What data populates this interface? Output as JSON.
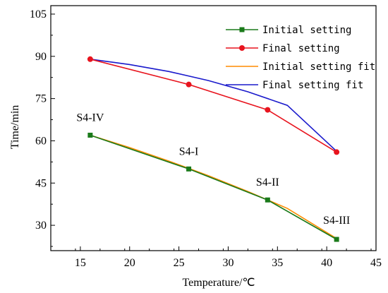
{
  "chart_data": {
    "type": "line",
    "title": "",
    "xlabel": "Temperature/℃",
    "ylabel": "Time/min",
    "xlim": [
      12,
      45
    ],
    "ylim": [
      21,
      108
    ],
    "xticks": [
      15,
      20,
      25,
      30,
      35,
      40,
      45
    ],
    "yticks": [
      30,
      45,
      60,
      75,
      90,
      105
    ],
    "grid": false,
    "legend_position": "top-right",
    "series": [
      {
        "name": "Initial setting",
        "color": "#1a7a1a",
        "marker": "square",
        "x": [
          16,
          26,
          34,
          41
        ],
        "y": [
          62,
          50,
          39,
          25
        ]
      },
      {
        "name": "Final setting",
        "color": "#e8141e",
        "marker": "circle",
        "x": [
          16,
          26,
          34,
          41
        ],
        "y": [
          89,
          80,
          71,
          56
        ]
      },
      {
        "name": "Initial setting fit",
        "color": "#ff8c00",
        "marker": "none",
        "x": [
          16,
          20,
          24,
          28,
          32,
          36,
          41
        ],
        "y": [
          62,
          57.6,
          52.8,
          47.6,
          42.0,
          36.0,
          25.3
        ]
      },
      {
        "name": "Final setting fit",
        "color": "#1a1acc",
        "marker": "none",
        "x": [
          16,
          20,
          24,
          28,
          32,
          36,
          41
        ],
        "y": [
          89,
          87.1,
          84.6,
          81.4,
          77.4,
          72.6,
          56.3
        ]
      }
    ],
    "annotations": [
      {
        "text": "S4-IV",
        "x": 16,
        "y": 62
      },
      {
        "text": "S4-I",
        "x": 26,
        "y": 50
      },
      {
        "text": "S4-II",
        "x": 34,
        "y": 39
      },
      {
        "text": "S4-III",
        "x": 41,
        "y": 25
      }
    ]
  }
}
